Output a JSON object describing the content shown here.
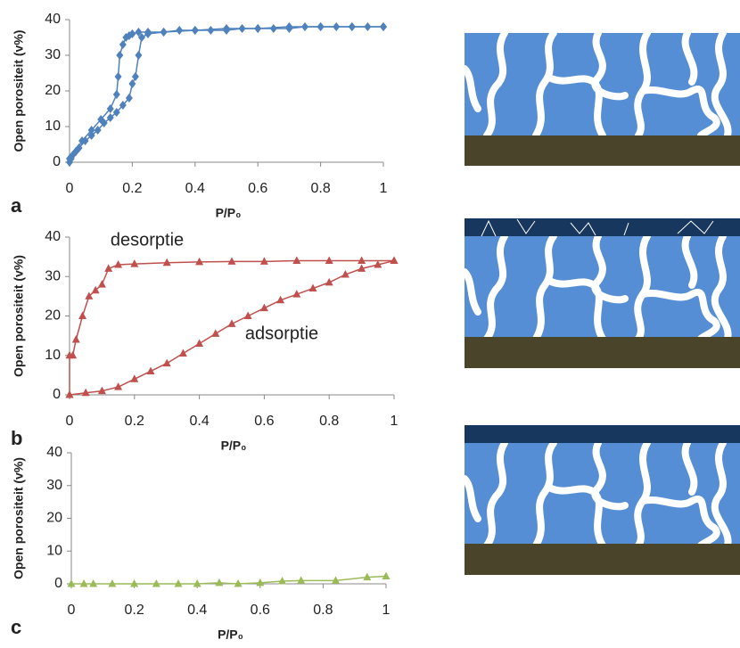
{
  "chart_data": [
    {
      "type": "line",
      "label": "a",
      "ylabel": "Open porositeit (v%)",
      "xlabel": "P/P₀",
      "xlim": [
        0,
        1
      ],
      "ylim": [
        0,
        40
      ],
      "xticks": [
        0,
        0.2,
        0.4,
        0.6,
        0.8,
        1
      ],
      "yticks": [
        0,
        10,
        20,
        30,
        40
      ],
      "marker": "diamond",
      "series": [
        {
          "color": "#4f81bd",
          "x": [
            0,
            0.005,
            0.01,
            0.02,
            0.03,
            0.05,
            0.07,
            0.09,
            0.11,
            0.13,
            0.15,
            0.17,
            0.19,
            0.2,
            0.21,
            0.22,
            0.23,
            0.25,
            0.3,
            0.35,
            0.4,
            0.45,
            0.5,
            0.55,
            0.6,
            0.65,
            0.7,
            0.75,
            0.8,
            0.85,
            0.9,
            0.95,
            1
          ],
          "values": [
            0,
            1,
            2,
            3,
            4,
            6,
            7.5,
            9,
            11,
            12.5,
            14,
            16,
            18,
            22,
            24,
            30,
            35,
            36,
            36.5,
            37,
            37,
            37,
            37,
            37.5,
            37.5,
            37.5,
            37.5,
            38,
            38,
            38,
            38,
            38,
            38
          ]
        },
        {
          "color": "#4f81bd",
          "x": [
            0,
            0.02,
            0.04,
            0.07,
            0.1,
            0.13,
            0.15,
            0.155,
            0.16,
            0.17,
            0.18,
            0.19,
            0.2,
            0.22,
            0.25,
            0.3,
            0.4,
            0.5,
            0.6,
            0.7,
            0.8,
            0.9,
            1
          ],
          "values": [
            1,
            3,
            6,
            9,
            12,
            15,
            19,
            24,
            30,
            33,
            35,
            35.5,
            36,
            36.5,
            36.5,
            36.5,
            37,
            37.5,
            37.5,
            38,
            38,
            38,
            38
          ]
        }
      ]
    },
    {
      "type": "line",
      "label": "b",
      "ylabel": "Open porositeit (v%)",
      "xlabel": "P/P₀",
      "annotations": [
        "desorptie",
        "adsorptie"
      ],
      "xlim": [
        0,
        1
      ],
      "ylim": [
        0,
        40
      ],
      "xticks": [
        0,
        0.2,
        0.4,
        0.6,
        0.8,
        1
      ],
      "yticks": [
        0,
        10,
        20,
        30,
        40
      ],
      "marker": "triangle",
      "series": [
        {
          "color": "#c0504d",
          "x": [
            0,
            0,
            0.01,
            0.02,
            0.04,
            0.06,
            0.08,
            0.1,
            0.12,
            0.15,
            0.2,
            0.3,
            0.4,
            0.5,
            0.6,
            0.7,
            0.8,
            0.9,
            1
          ],
          "values": [
            0,
            10,
            10,
            14,
            20,
            25,
            26.5,
            28,
            32,
            33,
            33.2,
            33.5,
            33.7,
            33.8,
            33.8,
            34,
            34,
            34,
            34
          ]
        },
        {
          "color": "#c0504d",
          "x": [
            0,
            0.05,
            0.1,
            0.15,
            0.2,
            0.25,
            0.3,
            0.35,
            0.4,
            0.45,
            0.5,
            0.55,
            0.6,
            0.65,
            0.7,
            0.75,
            0.8,
            0.85,
            0.9,
            0.95,
            1
          ],
          "values": [
            0,
            0.5,
            1,
            2,
            4,
            6,
            8,
            10.5,
            13,
            15.5,
            18,
            20,
            22,
            24,
            25.5,
            27,
            28.5,
            30.5,
            32,
            33,
            34
          ]
        }
      ]
    },
    {
      "type": "line",
      "label": "c",
      "ylabel": "Open porositeit (v%)",
      "xlabel": "P/P₀",
      "xlim": [
        0,
        1
      ],
      "ylim": [
        0,
        40
      ],
      "xticks": [
        0,
        0.2,
        0.4,
        0.6,
        0.8,
        1
      ],
      "yticks": [
        0,
        10,
        20,
        30,
        40
      ],
      "marker": "triangle",
      "series": [
        {
          "color": "#9bbb59",
          "x": [
            0,
            0.04,
            0.07,
            0.13,
            0.2,
            0.27,
            0.34,
            0.4,
            0.47,
            0.53,
            0.6,
            0.67,
            0.73,
            0.84,
            0.94,
            1
          ],
          "values": [
            0,
            0,
            0,
            0,
            0,
            0,
            0,
            0,
            0.3,
            0,
            0.3,
            0.8,
            1,
            1,
            2,
            2.3
          ]
        }
      ]
    }
  ]
}
